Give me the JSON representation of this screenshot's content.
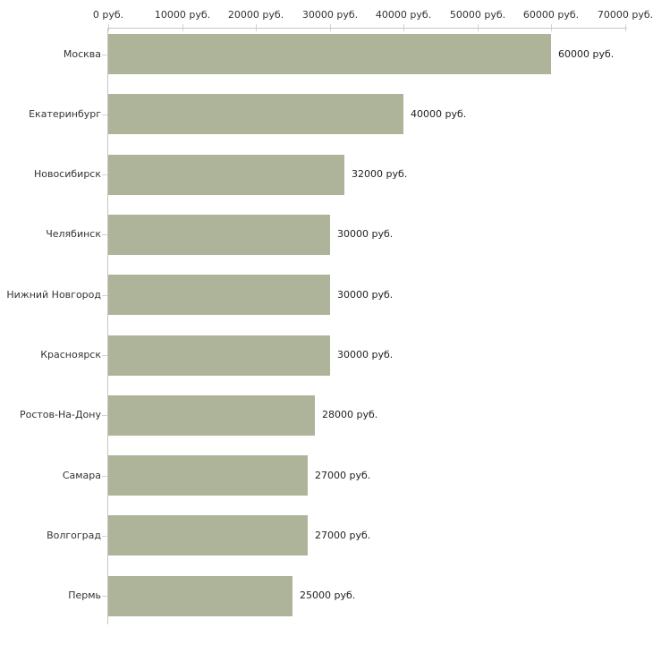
{
  "chart_data": {
    "type": "bar",
    "orientation": "horizontal",
    "title": "",
    "xlabel": "",
    "ylabel": "",
    "categories": [
      "Москва",
      "Екатеринбург",
      "Новосибирск",
      "Челябинск",
      "Нижний Новгород",
      "Красноярск",
      "Ростов-На-Дону",
      "Самара",
      "Волгоград",
      "Пермь"
    ],
    "values": [
      60000,
      40000,
      32000,
      30000,
      30000,
      30000,
      28000,
      27000,
      27000,
      25000
    ],
    "value_labels": [
      "60000 руб.",
      "40000 руб.",
      "32000 руб.",
      "30000 руб.",
      "30000 руб.",
      "30000 руб.",
      "28000 руб.",
      "27000 руб.",
      "27000 руб.",
      "25000 руб."
    ],
    "x_axis": {
      "position": "top",
      "min": 0,
      "max": 70000,
      "tick_values": [
        0,
        10000,
        20000,
        30000,
        40000,
        50000,
        60000,
        70000
      ],
      "tick_labels": [
        "0 руб.",
        "10000 руб.",
        "20000 руб.",
        "30000 руб.",
        "40000 руб.",
        "50000 руб.",
        "60000 руб.",
        "70000 руб."
      ]
    },
    "grid": false,
    "legend": false,
    "colors": {
      "bar": "#aeb499",
      "axis_line": "#c6c6c6",
      "tick_mark": "#d6d7b8",
      "category_text": "#333333",
      "value_text": "#222222",
      "background": "#ffffff"
    }
  }
}
